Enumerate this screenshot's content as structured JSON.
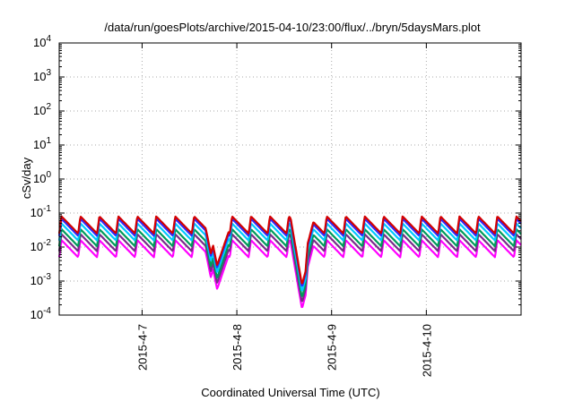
{
  "chart_data": {
    "type": "line",
    "title": "/data/run/goesPlots/archive/2015-04-10/23:00/flux/../bryn/5daysMars.plot",
    "xlabel": "Coordinated Universal Time (UTC)",
    "ylabel": "cSv/day",
    "y_scale": "log",
    "ylim": [
      0.0001,
      10000
    ],
    "y_ticks": [
      {
        "base": "10",
        "exp": "-4",
        "value": 0.0001
      },
      {
        "base": "10",
        "exp": "-3",
        "value": 0.001
      },
      {
        "base": "10",
        "exp": "-2",
        "value": 0.01
      },
      {
        "base": "10",
        "exp": "-1",
        "value": 0.1
      },
      {
        "base": "10",
        "exp": "0",
        "value": 1
      },
      {
        "base": "10",
        "exp": "1",
        "value": 10
      },
      {
        "base": "10",
        "exp": "2",
        "value": 100
      },
      {
        "base": "10",
        "exp": "3",
        "value": 1000
      },
      {
        "base": "10",
        "exp": "4",
        "value": 10000
      }
    ],
    "xlim": [
      "2015-04-06 03:00",
      "2015-04-11 00:00"
    ],
    "x_ticks": [
      {
        "label": "2015-4-7",
        "value": "2015-04-07"
      },
      {
        "label": "2015-4-8",
        "value": "2015-04-08"
      },
      {
        "label": "2015-4-9",
        "value": "2015-04-09"
      },
      {
        "label": "2015-4-10",
        "value": "2015-04-10"
      }
    ],
    "grid": true,
    "legend": "none",
    "pattern": {
      "description": "sawtooth oscillation, roughly 5 cycles per day; peaks near 0.08, troughs near 0.03 for top series",
      "peak_value": 0.08,
      "trough_value": 0.025,
      "dips": [
        {
          "center": "2015-04-07 19:00",
          "min_value": 0.0012
        },
        {
          "center": "2015-04-08 16:30",
          "min_value": 0.0006
        }
      ]
    },
    "series": [
      {
        "color": "#d40000",
        "scale": 1.0
      },
      {
        "color": "#2a2aff",
        "scale": 0.85
      },
      {
        "color": "#00c8ff",
        "scale": 0.62
      },
      {
        "color": "#009b5a",
        "scale": 0.42
      },
      {
        "color": "#7a2a8a",
        "scale": 0.3
      },
      {
        "color": "#ff00ff",
        "scale": 0.2
      }
    ]
  }
}
